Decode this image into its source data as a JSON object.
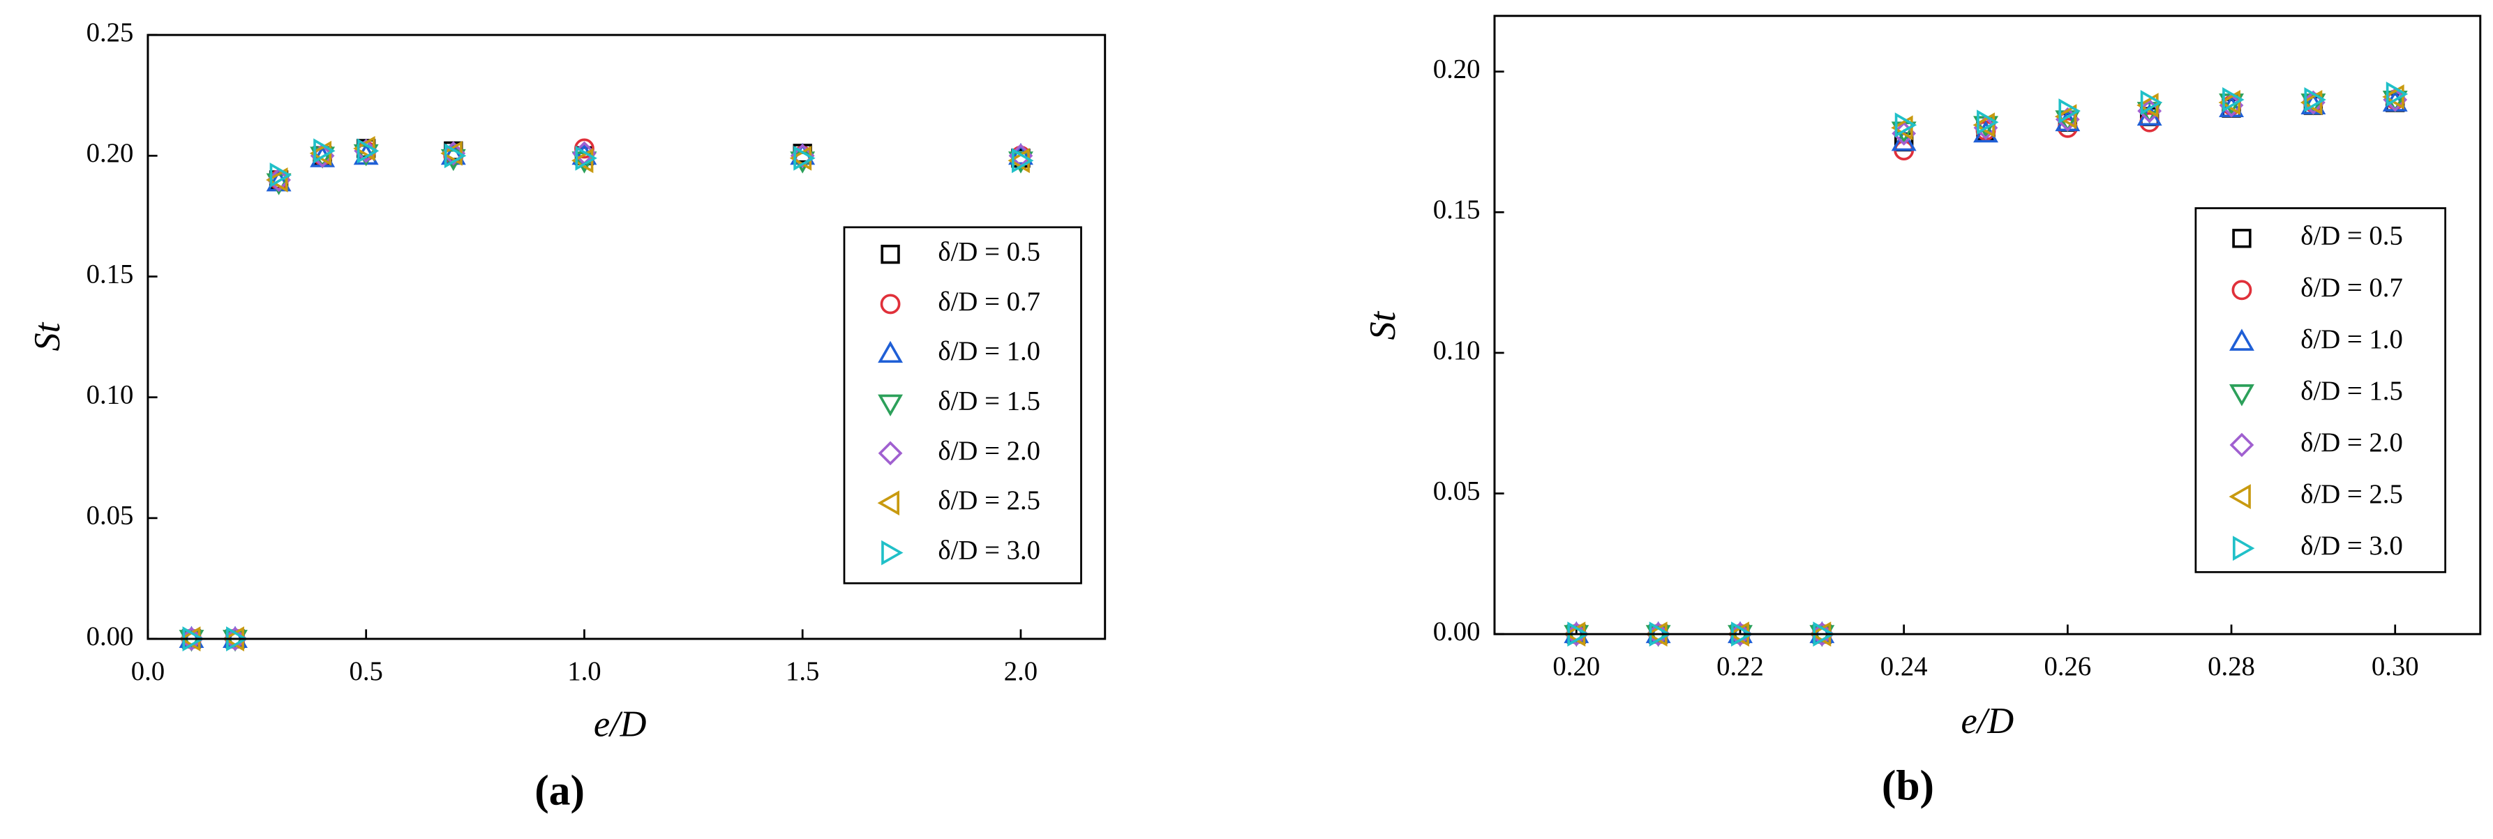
{
  "chart_data": [
    {
      "type": "scatter",
      "label": "(a)",
      "x_label": "e/D",
      "y_label": "St",
      "x": [
        0.1,
        0.2,
        0.3,
        0.4,
        0.5,
        0.7,
        1.0,
        1.5,
        2.0
      ],
      "xlim": [
        0,
        2.193
      ],
      "ylim": [
        0,
        0.25
      ],
      "xticks": [
        {
          "value": 0,
          "label": "0.0"
        },
        0.5,
        {
          "value": 1,
          "label": "1.0"
        },
        1.5,
        {
          "value": 2,
          "label": "2.0"
        }
      ],
      "yticks": [
        {
          "value": 0,
          "label": "0.00"
        },
        {
          "value": 0.05,
          "label": "0.05"
        },
        {
          "value": 0.1,
          "label": "0.10"
        },
        {
          "value": 0.15,
          "label": "0.15"
        },
        {
          "value": 0.2,
          "label": "0.20"
        },
        {
          "value": 0.25,
          "label": "0.25"
        }
      ],
      "series": [
        {
          "name": "δ/D = 0.5",
          "color": "#000000",
          "marker": "square",
          "values": [
            0,
            0,
            0.19,
            0.2,
            0.203,
            0.202,
            0.2,
            0.201,
            0.199
          ]
        },
        {
          "name": "δ/D = 0.7",
          "color": "#e0303a",
          "marker": "circle",
          "values": [
            0,
            0,
            0.19,
            0.2,
            0.202,
            0.2,
            0.203,
            0.2,
            0.2
          ]
        },
        {
          "name": "δ/D = 1.0",
          "color": "#1f5fd6",
          "marker": "triangle-up",
          "values": [
            0,
            0,
            0.189,
            0.199,
            0.2,
            0.2,
            0.2,
            0.2,
            0.2
          ]
        },
        {
          "name": "δ/D = 1.5",
          "color": "#2ca05a",
          "marker": "triangle-down",
          "values": [
            0,
            0,
            0.189,
            0.2,
            0.201,
            0.199,
            0.198,
            0.198,
            0.198
          ]
        },
        {
          "name": "δ/D = 2.0",
          "color": "#a060d0",
          "marker": "diamond",
          "values": [
            0,
            0,
            0.19,
            0.2,
            0.202,
            0.201,
            0.201,
            0.2,
            0.2
          ]
        },
        {
          "name": "δ/D = 2.5",
          "color": "#c89a10",
          "marker": "triangle-left",
          "values": [
            0,
            0,
            0.19,
            0.201,
            0.203,
            0.201,
            0.198,
            0.199,
            0.198
          ]
        },
        {
          "name": "δ/D = 3.0",
          "color": "#20c0c8",
          "marker": "triangle-right",
          "values": [
            0,
            0,
            0.192,
            0.202,
            0.202,
            0.2,
            0.199,
            0.199,
            0.198
          ]
        }
      ]
    },
    {
      "type": "scatter",
      "label": "(b)",
      "x_label": "e/D",
      "y_label": "St",
      "x": [
        0.2,
        0.21,
        0.22,
        0.23,
        0.24,
        0.25,
        0.26,
        0.27,
        0.28,
        0.29,
        0.3
      ],
      "xlim": [
        0.19,
        0.3104
      ],
      "ylim": [
        0,
        0.2198
      ],
      "xticks": [
        {
          "value": 0.2,
          "label": "0.20"
        },
        0.22,
        0.24,
        0.26,
        0.28,
        {
          "value": 0.3,
          "label": "0.30"
        }
      ],
      "yticks": [
        {
          "value": 0,
          "label": "0.00"
        },
        {
          "value": 0.05,
          "label": "0.05"
        },
        {
          "value": 0.1,
          "label": "0.10"
        },
        {
          "value": 0.15,
          "label": "0.15"
        },
        {
          "value": 0.2,
          "label": "0.20"
        }
      ],
      "series": [
        {
          "name": "δ/D = 0.5",
          "color": "#000000",
          "marker": "square",
          "values": [
            0,
            0,
            0,
            0,
            0.175,
            0.179,
            0.182,
            0.184,
            0.187,
            0.188,
            0.189
          ]
        },
        {
          "name": "δ/D = 0.7",
          "color": "#e0303a",
          "marker": "circle",
          "values": [
            0,
            0,
            0,
            0,
            0.172,
            0.179,
            0.18,
            0.182,
            0.188,
            0.189,
            0.19
          ]
        },
        {
          "name": "δ/D = 1.0",
          "color": "#1f5fd6",
          "marker": "triangle-up",
          "values": [
            0,
            0,
            0,
            0,
            0.175,
            0.178,
            0.182,
            0.184,
            0.187,
            0.188,
            0.189
          ]
        },
        {
          "name": "δ/D = 1.5",
          "color": "#2ca05a",
          "marker": "triangle-down",
          "values": [
            0,
            0,
            0,
            0,
            0.179,
            0.181,
            0.183,
            0.186,
            0.189,
            0.189,
            0.19
          ]
        },
        {
          "name": "δ/D = 2.0",
          "color": "#a060d0",
          "marker": "diamond",
          "values": [
            0,
            0,
            0,
            0,
            0.178,
            0.18,
            0.183,
            0.186,
            0.188,
            0.189,
            0.19
          ]
        },
        {
          "name": "δ/D = 2.5",
          "color": "#c89a10",
          "marker": "triangle-left",
          "values": [
            0,
            0,
            0,
            0,
            0.18,
            0.181,
            0.184,
            0.188,
            0.189,
            0.189,
            0.191
          ]
        },
        {
          "name": "δ/D = 3.0",
          "color": "#20c0c8",
          "marker": "triangle-right",
          "values": [
            0,
            0,
            0,
            0,
            0.181,
            0.182,
            0.186,
            0.189,
            0.19,
            0.19,
            0.192
          ]
        }
      ]
    }
  ]
}
